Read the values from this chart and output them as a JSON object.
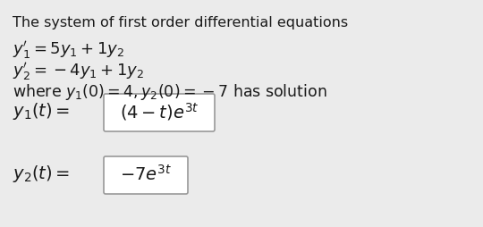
{
  "background_color": "#ebebeb",
  "title_text": "The system of first order differential equations",
  "line1": "$y_1' = 5y_1 + 1y_2$",
  "line2": "$y_2' = -4y_1 + 1y_2$",
  "line3_plain": "where ",
  "line3_math": "$y_1(0) = 4, y_2(0) = -7$",
  "line3_end": " has solution",
  "sol_label1": "$y_1(t) = $",
  "sol_box1": "$(4-t)e^{3t}$",
  "sol_label2": "$y_2(t) = $",
  "sol_box2": "$-7e^{3t}$",
  "text_color": "#1a1a1a",
  "box_bg": "#ffffff",
  "box_edge": "#999999",
  "font_size_title": 11.5,
  "font_size_eq": 13,
  "font_size_sol": 14
}
